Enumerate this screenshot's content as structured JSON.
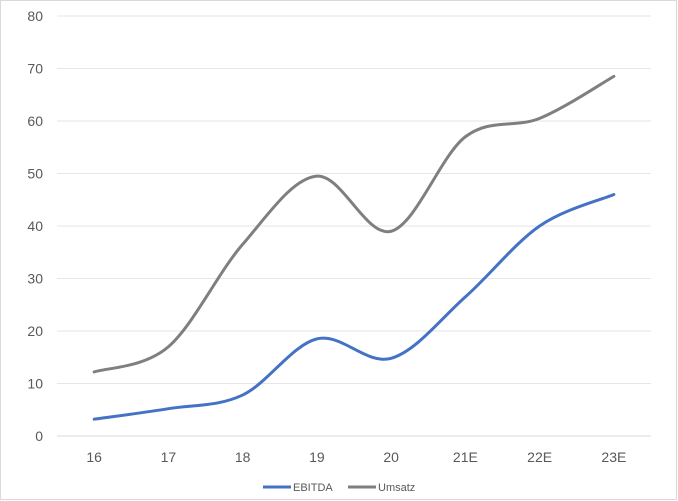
{
  "chart_data": {
    "type": "line",
    "smooth": true,
    "categories": [
      "16",
      "17",
      "18",
      "19",
      "20",
      "21E",
      "22E",
      "23E"
    ],
    "series": [
      {
        "name": "EBITDA",
        "color": "#4472c4",
        "values": [
          3.2,
          5.2,
          7.8,
          18.5,
          14.8,
          26.5,
          40.0,
          46.0
        ]
      },
      {
        "name": "Umsatz",
        "color": "#7f7f7f",
        "values": [
          12.2,
          17.0,
          36.5,
          49.5,
          39.0,
          57.0,
          60.5,
          68.5
        ]
      }
    ],
    "y_ticks": [
      "0",
      "10",
      "20",
      "30",
      "40",
      "50",
      "60",
      "70",
      "80"
    ],
    "ylim": [
      0,
      80
    ],
    "grid": true,
    "legend_position": "bottom-center",
    "title": "",
    "xlabel": "",
    "ylabel": ""
  }
}
